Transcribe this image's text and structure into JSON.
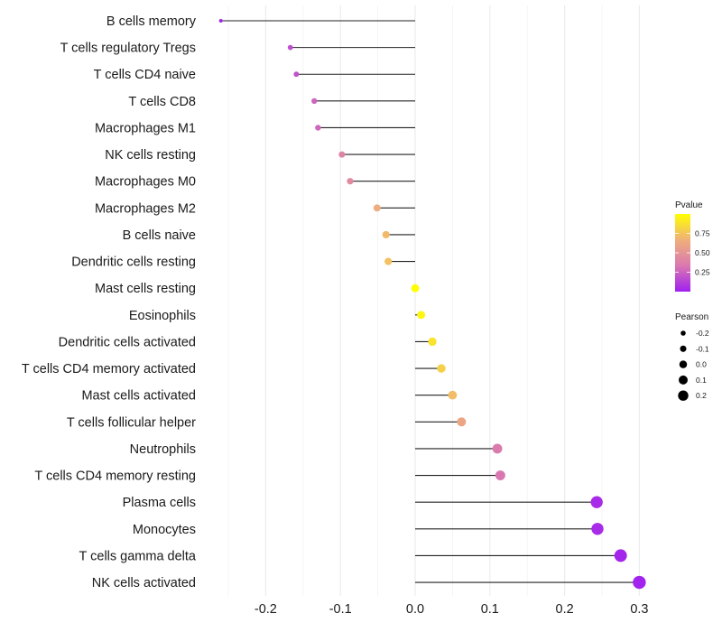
{
  "chart_data": {
    "type": "lollipop",
    "title": "",
    "xlabel": "",
    "ylabel": "",
    "xlim": [
      -0.265,
      0.31
    ],
    "x_ticks": [
      -0.2,
      -0.1,
      0.0,
      0.1,
      0.2,
      0.3
    ],
    "x_tick_labels": [
      "-0.2",
      "-0.1",
      "0.0",
      "0.1",
      "0.2",
      "0.3"
    ],
    "grid": true,
    "categories": [
      "B cells memory",
      "T cells regulatory  Tregs ",
      "T cells CD4 naive",
      "T cells CD8",
      "Macrophages M1",
      "NK cells resting",
      "Macrophages M0",
      "Macrophages M2",
      "B cells naive",
      "Dendritic cells resting",
      "Mast cells resting",
      "Eosinophils",
      "Dendritic cells activated",
      "T cells CD4 memory activated",
      "Mast cells activated",
      "T cells follicular helper",
      "Neutrophils",
      "T cells CD4 memory resting",
      "Plasma cells",
      "Monocytes",
      "T cells gamma delta",
      "NK cells activated"
    ],
    "pearson": [
      -0.26,
      -0.167,
      -0.159,
      -0.135,
      -0.13,
      -0.098,
      -0.087,
      -0.051,
      -0.039,
      -0.036,
      0.0,
      0.008,
      0.023,
      0.035,
      0.05,
      0.062,
      0.11,
      0.114,
      0.243,
      0.244,
      0.275,
      0.3
    ],
    "pvalue": [
      0.02,
      0.17,
      0.19,
      0.26,
      0.27,
      0.4,
      0.44,
      0.65,
      0.71,
      0.74,
      1.0,
      0.96,
      0.88,
      0.8,
      0.72,
      0.6,
      0.35,
      0.33,
      0.04,
      0.04,
      0.02,
      0.01
    ],
    "legend": {
      "placement": "right",
      "color": {
        "title": "Pvalue",
        "ticks": [
          0.25,
          0.5,
          0.75
        ],
        "tick_labels": [
          "0.25",
          "0.50",
          "0.75"
        ],
        "range": [
          0.0,
          1.0
        ],
        "colors": [
          "#A020F0",
          "#DA78B0",
          "#EFB07A",
          "#FFFF00"
        ]
      },
      "size": {
        "title": "Pearson",
        "values": [
          -0.2,
          -0.1,
          0.0,
          0.1,
          0.2
        ],
        "labels": [
          "-0.2",
          "-0.1",
          "0.0",
          "0.1",
          "0.2"
        ]
      }
    }
  }
}
